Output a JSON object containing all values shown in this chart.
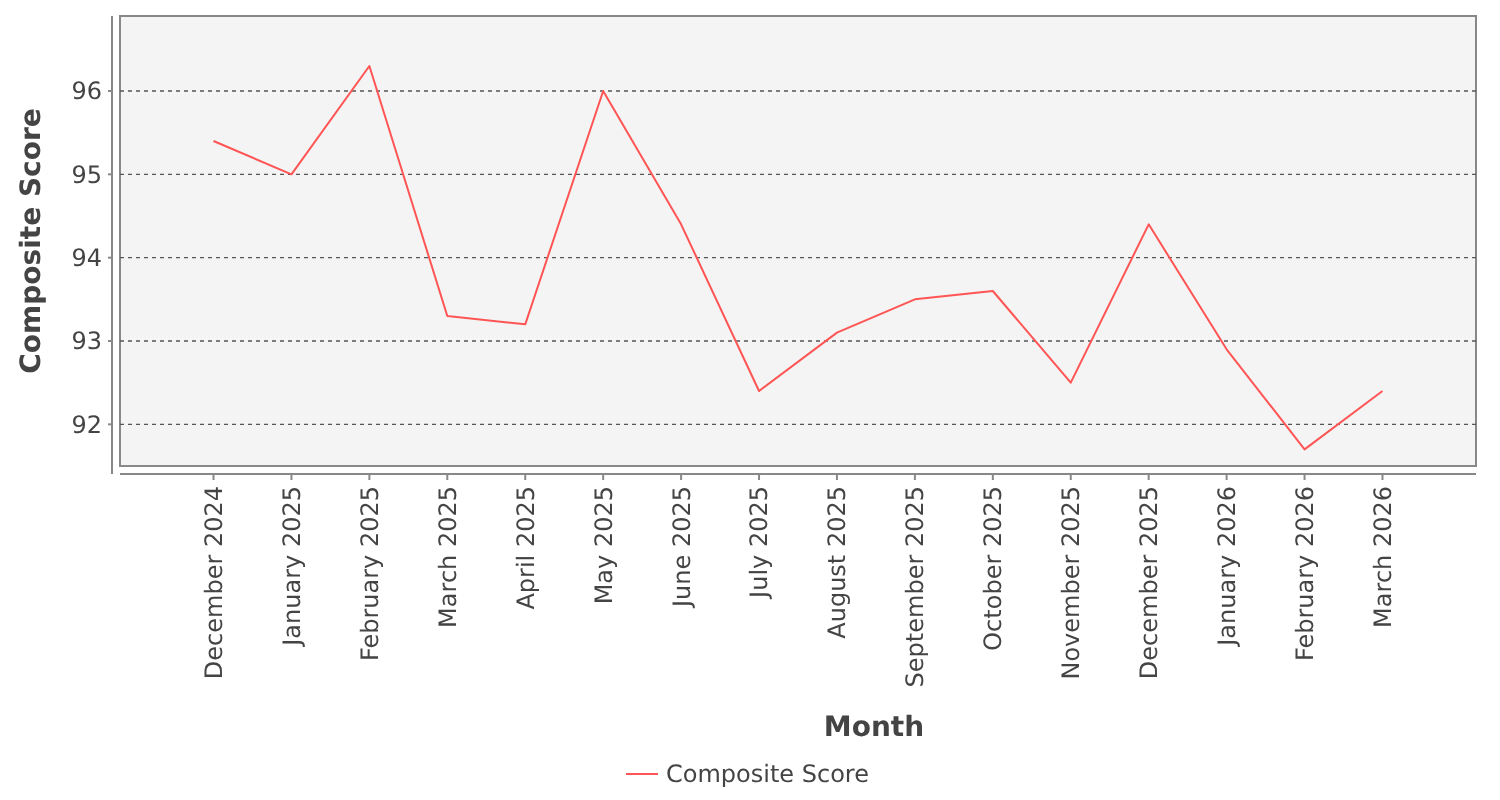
{
  "chart_data": {
    "type": "line",
    "xlabel": "Month",
    "ylabel": "Composite Score",
    "categories": [
      "December 2024",
      "January 2025",
      "February 2025",
      "March 2025",
      "April 2025",
      "May 2025",
      "June 2025",
      "July 2025",
      "August 2025",
      "September 2025",
      "October 2025",
      "November 2025",
      "December 2025",
      "January 2026",
      "February 2026",
      "March 2026"
    ],
    "series": [
      {
        "name": "Composite Score",
        "color": "#ff5555",
        "values": [
          95.4,
          95.0,
          96.3,
          93.3,
          93.2,
          96.0,
          94.4,
          92.4,
          93.1,
          93.5,
          93.6,
          92.5,
          94.4,
          92.9,
          91.7,
          92.4
        ]
      }
    ],
    "ylim": [
      91.5,
      96.9
    ],
    "yticks": [
      92,
      93,
      94,
      95,
      96
    ],
    "grid": "y",
    "legend": "bottom",
    "marker": "none",
    "line_style": "solid"
  }
}
